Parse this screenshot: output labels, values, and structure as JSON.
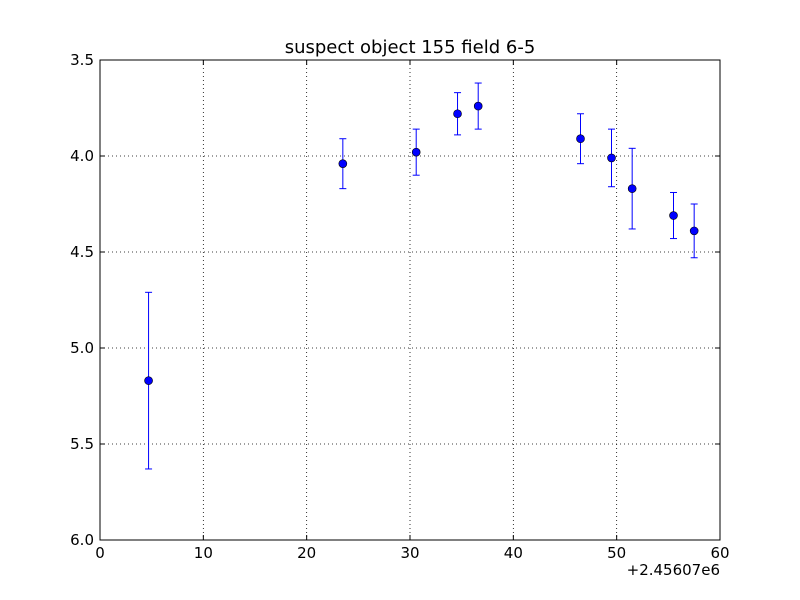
{
  "chart_data": {
    "type": "scatter",
    "title": "suspect object 155 field 6-5",
    "xlabel": "",
    "ylabel": "",
    "x_offset_label": "+2.45607e6",
    "xlim": [
      0,
      60
    ],
    "ylim": [
      3.5,
      6.0
    ],
    "y_inverted": true,
    "grid": true,
    "x_ticks": [
      0,
      10,
      20,
      30,
      40,
      50,
      60
    ],
    "x_tick_labels": [
      "0",
      "10",
      "20",
      "30",
      "40",
      "50",
      "60"
    ],
    "y_ticks": [
      3.5,
      4.0,
      4.5,
      5.0,
      5.5,
      6.0
    ],
    "y_tick_labels": [
      "3.5",
      "4.0",
      "4.5",
      "5.0",
      "5.5",
      "6.0"
    ],
    "series": [
      {
        "color": "#0000ff",
        "marker": "circle",
        "error_bars": true,
        "points": [
          {
            "x": 4.7,
            "y": 5.17,
            "err": 0.46
          },
          {
            "x": 23.5,
            "y": 4.04,
            "err": 0.13
          },
          {
            "x": 30.6,
            "y": 3.98,
            "err": 0.12
          },
          {
            "x": 34.6,
            "y": 3.78,
            "err": 0.11
          },
          {
            "x": 36.6,
            "y": 3.74,
            "err": 0.12
          },
          {
            "x": 46.5,
            "y": 3.91,
            "err": 0.13
          },
          {
            "x": 49.5,
            "y": 4.01,
            "err": 0.15
          },
          {
            "x": 51.5,
            "y": 4.17,
            "err": 0.21
          },
          {
            "x": 55.5,
            "y": 4.31,
            "err": 0.12
          },
          {
            "x": 57.5,
            "y": 4.39,
            "err": 0.14
          }
        ]
      }
    ]
  }
}
